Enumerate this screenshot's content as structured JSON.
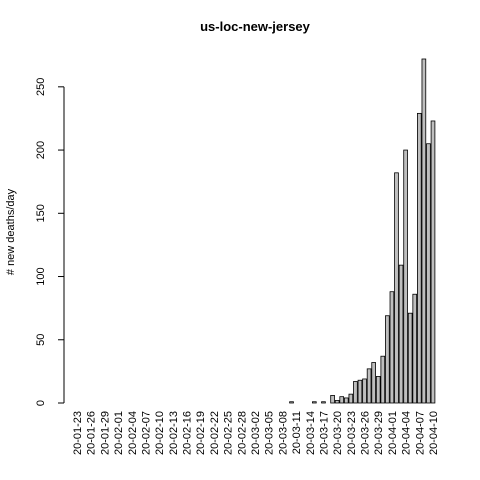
{
  "chart_data": {
    "type": "bar",
    "title": "us-loc-new-jersey",
    "y_label": "# new deaths/day",
    "categories": [
      "20-01-23",
      null,
      null,
      "20-01-26",
      null,
      null,
      "20-01-29",
      null,
      null,
      "20-02-01",
      null,
      null,
      "20-02-04",
      null,
      null,
      "20-02-07",
      null,
      null,
      "20-02-10",
      null,
      null,
      "20-02-13",
      null,
      null,
      "20-02-16",
      null,
      null,
      "20-02-19",
      null,
      null,
      "20-02-22",
      null,
      null,
      "20-02-25",
      null,
      null,
      "20-02-28",
      null,
      null,
      "20-03-02",
      null,
      null,
      "20-03-05",
      null,
      null,
      "20-03-08",
      null,
      null,
      "20-03-11",
      null,
      null,
      "20-03-14",
      null,
      null,
      "20-03-17",
      null,
      null,
      "20-03-20",
      null,
      null,
      "20-03-23",
      null,
      null,
      "20-03-26",
      null,
      null,
      "20-03-29",
      null,
      null,
      "20-04-01",
      null,
      null,
      "20-04-04",
      null,
      null,
      "20-04-07",
      null,
      null,
      "20-04-10"
    ],
    "values": [
      0,
      0,
      0,
      0,
      0,
      0,
      0,
      0,
      0,
      0,
      0,
      0,
      0,
      0,
      0,
      0,
      0,
      0,
      0,
      0,
      0,
      0,
      0,
      0,
      0,
      0,
      0,
      0,
      0,
      0,
      0,
      0,
      0,
      0,
      0,
      0,
      0,
      0,
      0,
      0,
      0,
      0,
      0,
      0,
      0,
      0,
      0,
      1,
      0,
      0,
      0,
      0,
      1,
      0,
      1,
      0,
      6,
      2,
      5,
      4,
      7,
      17,
      18,
      19,
      27,
      32,
      21,
      37,
      69,
      88,
      182,
      109,
      200,
      71,
      86,
      229,
      272,
      205,
      223
    ],
    "color": "#bebebe",
    "ylim": [
      0,
      272
    ],
    "yticks": [
      0,
      50,
      100,
      150,
      200,
      250
    ]
  }
}
